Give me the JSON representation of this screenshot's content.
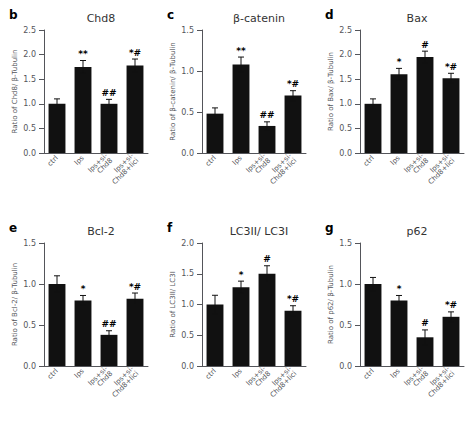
{
  "chart_data": [
    {
      "type": "bar",
      "title": "Chd8",
      "subtitle": "b",
      "ylabel": "Ratio of Chd8/ β-Tubulin",
      "categories": [
        "ctrl",
        "lps",
        "lps+si-\nChd8",
        "lps+si-\nChd8+lici"
      ],
      "values": [
        1.0,
        1.75,
        1.0,
        1.78
      ],
      "errors": [
        0.1,
        0.13,
        0.09,
        0.13
      ],
      "annotations": [
        null,
        "**",
        "##",
        "*#"
      ],
      "color": "#111111",
      "ylim": [
        0,
        2.5
      ],
      "yticks": [
        {
          "value": 0,
          "label": "0.0"
        },
        0.5,
        {
          "value": 1,
          "label": "1.0"
        },
        1.5,
        {
          "value": 2,
          "label": "2.0"
        },
        2.5
      ],
      "grid": false
    },
    {
      "type": "bar",
      "title": "β-catenin",
      "subtitle": "c",
      "ylabel": "Ratio of β-catenin/ β-Tubulin",
      "categories": [
        "ctrl",
        "lps",
        "lps+si-\nChd8",
        "lps+si-\nChd8+lici"
      ],
      "values": [
        0.48,
        1.08,
        0.33,
        0.7
      ],
      "errors": [
        0.07,
        0.09,
        0.05,
        0.06
      ],
      "annotations": [
        null,
        "**",
        "##",
        "*#"
      ],
      "color": "#111111",
      "ylim": [
        0,
        1.5
      ],
      "yticks": [
        {
          "value": 0,
          "label": "0.0"
        },
        0.5,
        {
          "value": 1,
          "label": "1.0"
        },
        1.5
      ],
      "grid": false
    },
    {
      "type": "bar",
      "title": "Bax",
      "subtitle": "d",
      "ylabel": "Ratio of Bax/ β-Tubulin",
      "categories": [
        "ctrl",
        "lps",
        "lps+si-\nChd8",
        "lps+si-\nChd8+lici"
      ],
      "values": [
        1.0,
        1.6,
        1.95,
        1.52
      ],
      "errors": [
        0.1,
        0.12,
        0.12,
        0.1
      ],
      "annotations": [
        null,
        "*",
        "#",
        "*#"
      ],
      "color": "#111111",
      "ylim": [
        0,
        2.5
      ],
      "yticks": [
        {
          "value": 0,
          "label": "0.0"
        },
        0.5,
        {
          "value": 1,
          "label": "1.0"
        },
        1.5,
        {
          "value": 2,
          "label": "2.0"
        },
        2.5
      ],
      "grid": false
    },
    {
      "type": "bar",
      "title": "Bcl-2",
      "subtitle": "e",
      "ylabel": "Ratio of Bcl-2/ β-Tubulin",
      "categories": [
        "ctrl",
        "lps",
        "lps+si-\nChd8",
        "lps+si-\nChd8+lici"
      ],
      "values": [
        1.0,
        0.8,
        0.38,
        0.82
      ],
      "errors": [
        0.1,
        0.06,
        0.05,
        0.07
      ],
      "annotations": [
        null,
        "*",
        "##",
        "*#"
      ],
      "color": "#111111",
      "ylim": [
        0,
        1.5
      ],
      "yticks": [
        {
          "value": 0,
          "label": "0.0"
        },
        0.5,
        {
          "value": 1,
          "label": "1.0"
        },
        1.5
      ],
      "grid": false
    },
    {
      "type": "bar",
      "title": "LC3II/ LC3I",
      "subtitle": "f",
      "ylabel": "Ratio of LC3II/ LC3I",
      "categories": [
        "ctrl",
        "lps",
        "lps+si-\nChd8",
        "lps+si-\nChd8+lici"
      ],
      "values": [
        1.0,
        1.28,
        1.5,
        0.9
      ],
      "errors": [
        0.15,
        0.1,
        0.13,
        0.08
      ],
      "annotations": [
        null,
        "*",
        "#",
        "*#"
      ],
      "color": "#111111",
      "ylim": [
        0,
        2
      ],
      "yticks": [
        {
          "value": 0,
          "label": "0.0"
        },
        0.5,
        {
          "value": 1,
          "label": "1.0"
        },
        1.5,
        {
          "value": 2,
          "label": "2.0"
        }
      ],
      "grid": false
    },
    {
      "type": "bar",
      "title": "p62",
      "subtitle": "g",
      "ylabel": "Ratio of p62/ β-Tubulin",
      "categories": [
        "ctrl",
        "lps",
        "lps+si-\nChd8",
        "lps+si-\nChd8+lici"
      ],
      "values": [
        1.0,
        0.8,
        0.35,
        0.6
      ],
      "errors": [
        0.08,
        0.06,
        0.09,
        0.06
      ],
      "annotations": [
        null,
        "*",
        "#",
        "*#"
      ],
      "color": "#111111",
      "ylim": [
        0,
        1.5
      ],
      "yticks": [
        {
          "value": 0,
          "label": "0.0"
        },
        0.5,
        {
          "value": 1,
          "label": "1.0"
        },
        1.5
      ],
      "grid": false
    }
  ]
}
